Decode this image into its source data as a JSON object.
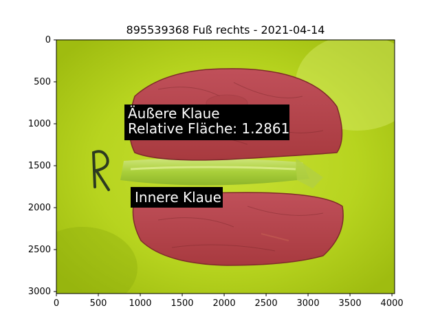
{
  "figure": {
    "title": "895539368 Fuß rechts - 2021-04-14"
  },
  "axes": {
    "x_ticks": [
      "0",
      "500",
      "1000",
      "1500",
      "2000",
      "2500",
      "3000",
      "3500",
      "4000"
    ],
    "y_ticks": [
      "0",
      "500",
      "1000",
      "1500",
      "2000",
      "2500",
      "3000"
    ],
    "x_range": [
      0,
      4032
    ],
    "y_range": [
      3024,
      0
    ]
  },
  "annotations": {
    "outer_claw_name": "Äußere Klaue",
    "relative_area": "Relative Fläche: 1.2861",
    "inner_claw_name": "Innere Klaue"
  },
  "photo": {
    "description_marks": [
      "R"
    ],
    "colors": {
      "background_green": "#b4d41e",
      "claw_overlay_red": "#b9444a",
      "label_box": "#000000"
    }
  }
}
